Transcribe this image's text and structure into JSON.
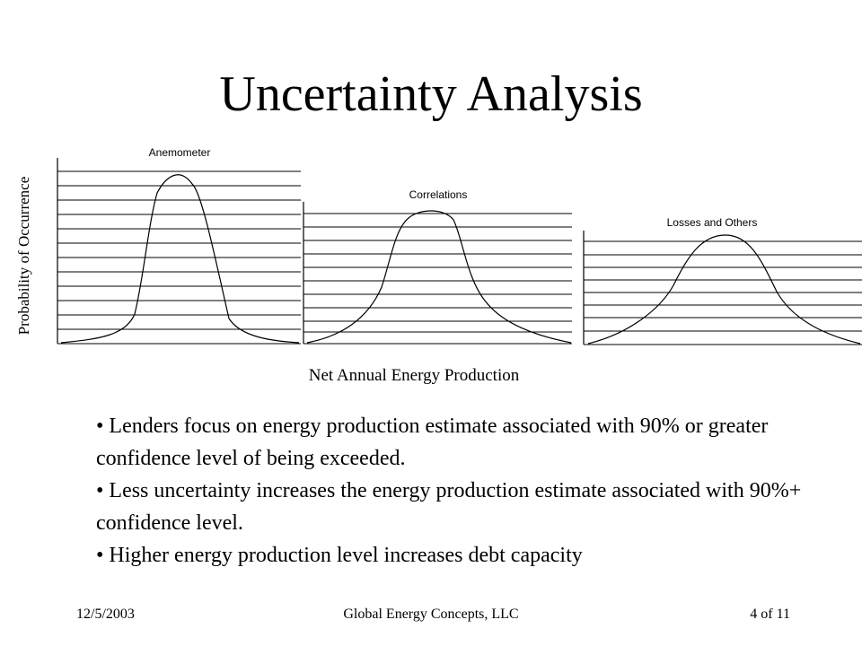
{
  "slide": {
    "title": "Uncertainty Analysis",
    "y_axis_label": "Probability of Occurrence",
    "x_axis_label": "Net Annual Energy Production"
  },
  "chart_data": [
    {
      "type": "line",
      "title": "Anemometer",
      "spread": "narrow"
    },
    {
      "type": "line",
      "title": "Correlations",
      "spread": "medium"
    },
    {
      "type": "line",
      "title": "Losses and Others",
      "spread": "wide"
    }
  ],
  "bullets": [
    "•  Lenders focus on energy production estimate associated with 90% or greater confidence level of being exceeded.",
    "•  Less uncertainty increases the energy production estimate associated with 90%+ confidence level.",
    "• Higher energy production level increases debt capacity"
  ],
  "footer": {
    "date": "12/5/2003",
    "organization": "Global Energy Concepts, LLC",
    "page": "4 of 11"
  }
}
